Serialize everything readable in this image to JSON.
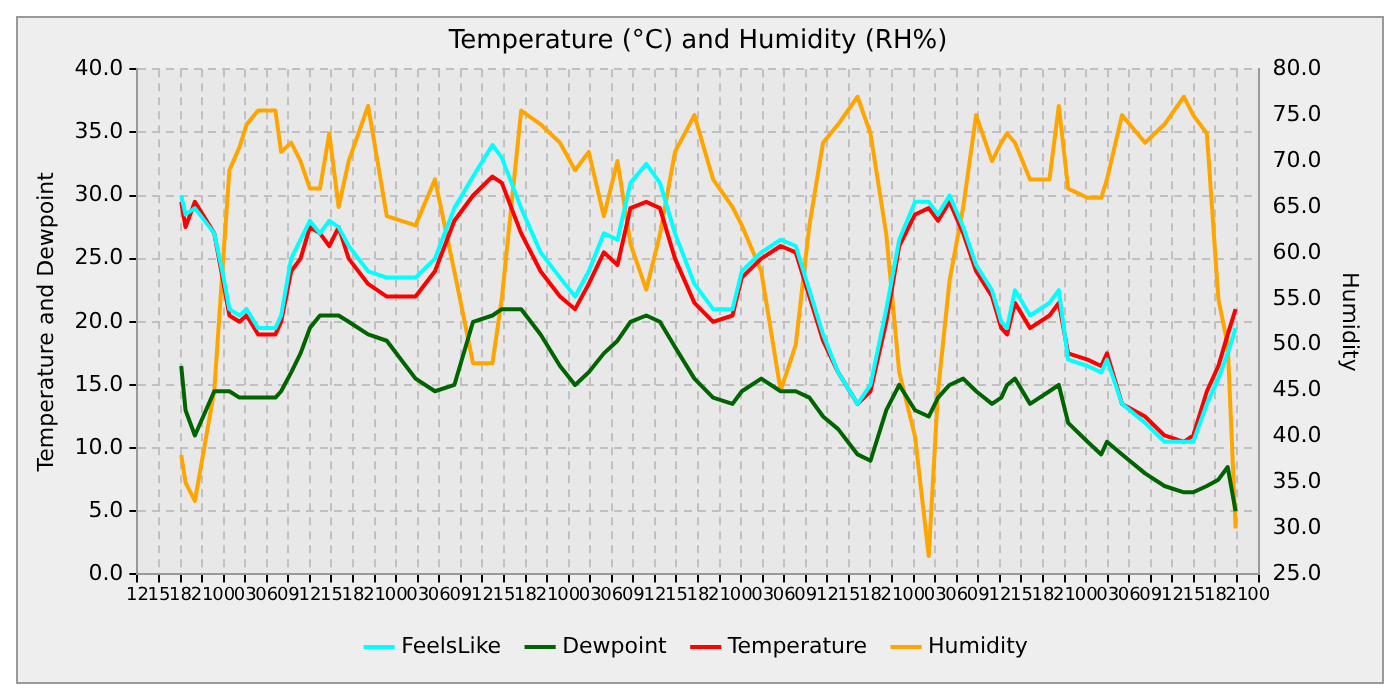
{
  "chart_data": {
    "type": "line",
    "title": "Temperature (°C) and Humidity (RH%)",
    "ylabel": "Temperature and Dewpoint",
    "y2label": "Humidity",
    "x": [
      18.1,
      18.7,
      20.0,
      22.7,
      24.0,
      24.8,
      26.2,
      27.2,
      28.8,
      31.2,
      32.0,
      33.4,
      34.7,
      36.0,
      37.4,
      38.7,
      40.0,
      41.4,
      44.1,
      46.7,
      50.7,
      53.4,
      56.1,
      58.7,
      61.4,
      62.7,
      65.4,
      68.1,
      70.8,
      72.9,
      74.8,
      76.9,
      78.8,
      80.6,
      82.8,
      84.7,
      86.8,
      89.5,
      92.1,
      94.8,
      96.1,
      98.8,
      101.5,
      103.6,
      105.5,
      107.4,
      109.5,
      112.2,
      114.0,
      116.2,
      118.0,
      120.2,
      122.1,
      123.4,
      125.0,
      126.9,
      128.7,
      130.9,
      132.2,
      133.0,
      134.1,
      136.2,
      138.9,
      140.2,
      141.5,
      144.2,
      146.1,
      146.9,
      149.0,
      152.2,
      154.9,
      157.6,
      158.9,
      160.8,
      162.4,
      163.7,
      164.8
    ],
    "series": [
      {
        "name": "FeelsLike",
        "color": "#00ffff",
        "values": [
          30,
          28.5,
          29,
          27,
          23.5,
          21,
          20.5,
          21,
          19.5,
          19.5,
          20.5,
          25,
          26.5,
          28,
          27,
          28,
          27.5,
          26,
          24,
          23.5,
          23.5,
          25,
          29,
          31.5,
          34,
          33,
          29,
          25.5,
          23.5,
          22,
          24,
          27,
          26.5,
          31,
          32.5,
          31,
          27,
          23,
          21,
          21,
          24,
          25.5,
          26.5,
          26,
          22.5,
          19,
          16,
          13.5,
          15,
          21,
          26.5,
          29.5,
          29.5,
          28.5,
          30,
          27.5,
          24.5,
          22.5,
          20,
          19.5,
          22.5,
          20.5,
          21.5,
          22.5,
          17,
          16.5,
          16,
          17,
          13.5,
          12,
          10.5,
          10.5,
          10.5,
          13.5,
          15.5,
          17.5,
          19.5
        ]
      },
      {
        "name": "Dewpoint",
        "color": "#006400",
        "values": [
          16.5,
          13,
          11,
          14.5,
          14.5,
          14.5,
          14,
          14,
          14,
          14,
          14.5,
          16,
          17.5,
          19.5,
          20.5,
          20.5,
          20.5,
          20,
          19,
          18.5,
          15.5,
          14.5,
          15,
          20,
          20.5,
          21,
          21,
          19,
          16.5,
          15,
          16,
          17.5,
          18.5,
          20,
          20.5,
          20,
          18,
          15.5,
          14,
          13.5,
          14.5,
          15.5,
          14.5,
          14.5,
          14,
          12.5,
          11.5,
          9.5,
          9,
          13,
          15,
          13,
          12.5,
          14,
          15,
          15.5,
          14.5,
          13.5,
          14,
          15,
          15.5,
          13.5,
          14.5,
          15,
          12,
          10.5,
          9.5,
          10.5,
          9.5,
          8,
          7,
          6.5,
          6.5,
          7,
          7.5,
          8.5,
          5
        ]
      },
      {
        "name": "Temperature",
        "color": "#ff0000",
        "values": [
          29.5,
          27.5,
          29.5,
          27,
          23,
          20.5,
          20,
          20.5,
          19,
          19,
          20,
          24,
          25,
          27.5,
          27,
          26,
          27.5,
          25,
          23,
          22,
          22,
          24,
          28,
          30,
          31.5,
          31,
          27,
          24,
          22,
          21,
          23,
          25.5,
          24.5,
          29,
          29.5,
          29,
          25,
          21.5,
          20,
          20.5,
          23.5,
          25,
          26,
          25.5,
          22,
          18.5,
          16,
          13.5,
          14.5,
          20,
          26,
          28.5,
          29,
          28,
          29.5,
          27,
          24,
          22,
          19.5,
          19,
          21.5,
          19.5,
          20.5,
          21.5,
          17.5,
          17,
          16.5,
          17.5,
          13.5,
          12.5,
          11,
          10.5,
          11,
          14.5,
          16.5,
          19,
          21
        ]
      },
      {
        "name": "Humidity",
        "color": "#ffa500",
        "axis": "y2",
        "values": [
          38,
          35,
          33,
          45,
          60,
          69,
          71.5,
          74,
          75.5,
          75.5,
          71,
          72,
          70,
          67,
          67,
          73,
          65,
          70,
          76,
          64,
          63,
          68,
          58,
          48,
          48,
          55,
          75.5,
          74,
          72,
          69,
          71,
          64,
          70,
          61,
          56,
          62,
          71,
          75,
          68,
          65,
          63,
          58,
          45,
          50,
          63,
          72,
          74,
          77,
          73,
          62,
          47,
          40,
          27,
          45,
          57,
          65,
          75,
          70,
          72,
          73,
          72,
          68,
          68,
          76,
          67,
          66,
          66,
          68,
          75,
          72,
          74,
          77,
          75,
          73,
          55,
          50,
          30
        ]
      }
    ],
    "xlim": [
      12,
      168
    ],
    "xticks": [
      {
        "value": 12,
        "label": "12"
      },
      {
        "value": 15,
        "label": "15"
      },
      {
        "value": 18,
        "label": "18"
      },
      {
        "value": 21,
        "label": "21"
      },
      {
        "value": 24,
        "label": "00"
      },
      {
        "value": 27,
        "label": "03"
      },
      {
        "value": 30,
        "label": "06"
      },
      {
        "value": 33,
        "label": "09"
      },
      {
        "value": 36,
        "label": "12"
      },
      {
        "value": 39,
        "label": "15"
      },
      {
        "value": 42,
        "label": "18"
      },
      {
        "value": 45,
        "label": "21"
      },
      {
        "value": 48,
        "label": "00"
      },
      {
        "value": 51,
        "label": "03"
      },
      {
        "value": 54,
        "label": "06"
      },
      {
        "value": 57,
        "label": "09"
      },
      {
        "value": 60,
        "label": "12"
      },
      {
        "value": 63,
        "label": "15"
      },
      {
        "value": 66,
        "label": "18"
      },
      {
        "value": 69,
        "label": "21"
      },
      {
        "value": 72,
        "label": "00"
      },
      {
        "value": 75,
        "label": "03"
      },
      {
        "value": 78,
        "label": "06"
      },
      {
        "value": 81,
        "label": "09"
      },
      {
        "value": 84,
        "label": "12"
      },
      {
        "value": 87,
        "label": "15"
      },
      {
        "value": 90,
        "label": "18"
      },
      {
        "value": 93,
        "label": "21"
      },
      {
        "value": 96,
        "label": "00"
      },
      {
        "value": 99,
        "label": "03"
      },
      {
        "value": 102,
        "label": "06"
      },
      {
        "value": 105,
        "label": "09"
      },
      {
        "value": 108,
        "label": "12"
      },
      {
        "value": 111,
        "label": "15"
      },
      {
        "value": 114,
        "label": "18"
      },
      {
        "value": 117,
        "label": "21"
      },
      {
        "value": 120,
        "label": "00"
      },
      {
        "value": 123,
        "label": "03"
      },
      {
        "value": 126,
        "label": "06"
      },
      {
        "value": 129,
        "label": "09"
      },
      {
        "value": 132,
        "label": "12"
      },
      {
        "value": 135,
        "label": "15"
      },
      {
        "value": 138,
        "label": "18"
      },
      {
        "value": 141,
        "label": "21"
      },
      {
        "value": 144,
        "label": "00"
      },
      {
        "value": 147,
        "label": "03"
      },
      {
        "value": 150,
        "label": "06"
      },
      {
        "value": 153,
        "label": "09"
      },
      {
        "value": 156,
        "label": "12"
      },
      {
        "value": 159,
        "label": "15"
      },
      {
        "value": 162,
        "label": "18"
      },
      {
        "value": 165,
        "label": "21"
      },
      {
        "value": 168,
        "label": "00"
      }
    ],
    "ylim": [
      0,
      40
    ],
    "yticks": [
      {
        "value": 0,
        "label": "0.0"
      },
      {
        "value": 5,
        "label": "5.0"
      },
      {
        "value": 10,
        "label": "10.0"
      },
      {
        "value": 15,
        "label": "15.0"
      },
      {
        "value": 20,
        "label": "20.0"
      },
      {
        "value": 25,
        "label": "25.0"
      },
      {
        "value": 30,
        "label": "30.0"
      },
      {
        "value": 35,
        "label": "35.0"
      },
      {
        "value": 40,
        "label": "40.0"
      }
    ],
    "y2lim": [
      25,
      80
    ],
    "y2ticks": [
      {
        "value": 25,
        "label": "25.0"
      },
      {
        "value": 30,
        "label": "30.0"
      },
      {
        "value": 35,
        "label": "35.0"
      },
      {
        "value": 40,
        "label": "40.0"
      },
      {
        "value": 45,
        "label": "45.0"
      },
      {
        "value": 50,
        "label": "50.0"
      },
      {
        "value": 55,
        "label": "55.0"
      },
      {
        "value": 60,
        "label": "60.0"
      },
      {
        "value": 65,
        "label": "65.0"
      },
      {
        "value": 70,
        "label": "70.0"
      },
      {
        "value": 75,
        "label": "75.0"
      },
      {
        "value": 80,
        "label": "80.0"
      }
    ],
    "grid": true,
    "legend": "bottom",
    "marker": "none",
    "line_style": "solid"
  }
}
